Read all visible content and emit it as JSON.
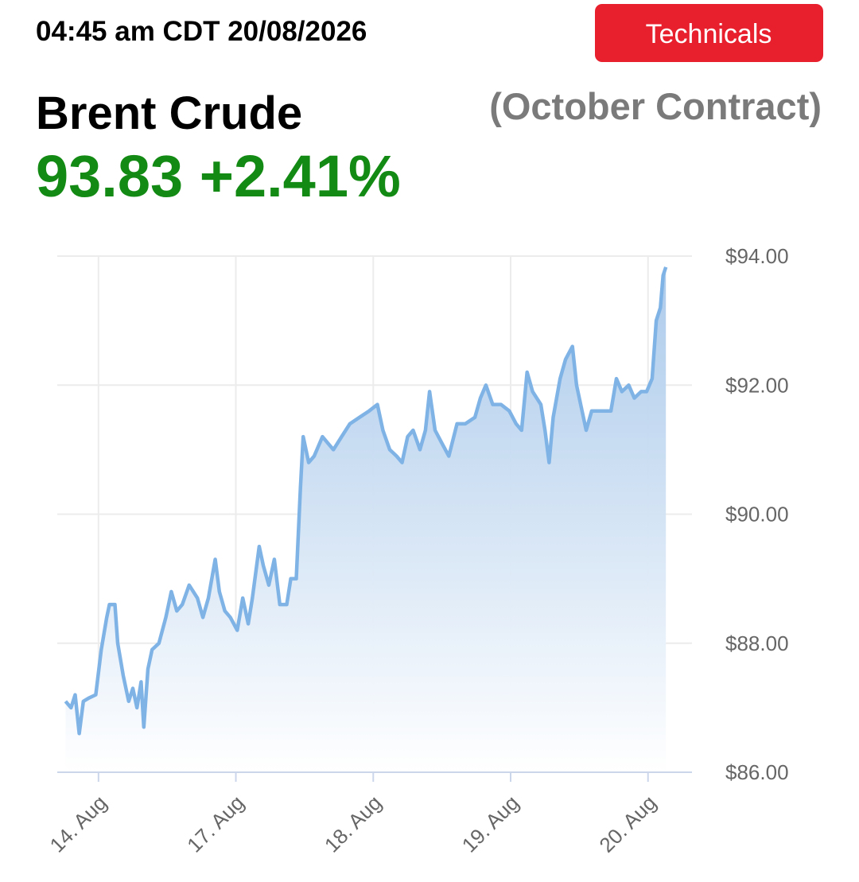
{
  "header": {
    "timestamp": "04:45 am CDT 20/08/2026",
    "button": "Technicals",
    "name": "Brent Crude",
    "contract": "(October Contract)",
    "price": "93.83",
    "change": "+2.41%"
  },
  "chart_data": {
    "type": "area",
    "x": [
      -0.24,
      -0.2,
      -0.17,
      -0.14,
      -0.11,
      -0.07,
      -0.02,
      0.02,
      0.06,
      0.08,
      0.12,
      0.14,
      0.18,
      0.22,
      0.25,
      0.28,
      0.31,
      0.33,
      0.36,
      0.39,
      0.44,
      0.49,
      0.53,
      0.57,
      0.61,
      0.66,
      0.72,
      0.76,
      0.8,
      0.85,
      0.88,
      0.92,
      0.96,
      1.01,
      1.05,
      1.09,
      1.12,
      1.17,
      1.2,
      1.24,
      1.28,
      1.32,
      1.37,
      1.4,
      1.44,
      1.47,
      1.49,
      1.53,
      1.57,
      1.63,
      1.67,
      1.71,
      1.77,
      1.83,
      1.9,
      1.97,
      2.03,
      2.07,
      2.12,
      2.17,
      2.21,
      2.25,
      2.29,
      2.34,
      2.38,
      2.41,
      2.45,
      2.5,
      2.55,
      2.61,
      2.67,
      2.74,
      2.78,
      2.82,
      2.87,
      2.93,
      2.99,
      3.04,
      3.08,
      3.12,
      3.16,
      3.22,
      3.25,
      3.28,
      3.31,
      3.36,
      3.4,
      3.45,
      3.48,
      3.52,
      3.55,
      3.59,
      3.64,
      3.73,
      3.77,
      3.81,
      3.86,
      3.9,
      3.95,
      3.99,
      4.03,
      4.06,
      4.09,
      4.11,
      4.13
    ],
    "values": [
      87.1,
      87.0,
      87.2,
      86.6,
      87.1,
      87.15,
      87.2,
      87.9,
      88.4,
      88.6,
      88.6,
      88.0,
      87.5,
      87.1,
      87.3,
      87.0,
      87.4,
      86.7,
      87.6,
      87.9,
      88.0,
      88.4,
      88.8,
      88.5,
      88.6,
      88.9,
      88.7,
      88.4,
      88.7,
      89.3,
      88.8,
      88.5,
      88.4,
      88.2,
      88.7,
      88.3,
      88.7,
      89.5,
      89.2,
      88.9,
      89.3,
      88.6,
      88.6,
      89.0,
      89.0,
      90.4,
      91.2,
      90.8,
      90.9,
      91.2,
      91.1,
      91.0,
      91.2,
      91.4,
      91.5,
      91.6,
      91.7,
      91.3,
      91.0,
      90.9,
      90.8,
      91.2,
      91.3,
      91.0,
      91.3,
      91.9,
      91.3,
      91.1,
      90.9,
      91.4,
      91.4,
      91.5,
      91.8,
      92.0,
      91.7,
      91.7,
      91.6,
      91.4,
      91.3,
      92.2,
      91.9,
      91.7,
      91.3,
      90.8,
      91.5,
      92.1,
      92.4,
      92.6,
      92.0,
      91.6,
      91.3,
      91.6,
      91.6,
      91.6,
      92.1,
      91.9,
      92.0,
      91.8,
      91.9,
      91.9,
      92.1,
      93.0,
      93.2,
      93.7,
      93.83
    ],
    "color": "#7fb3e6",
    "xlim": [
      -0.3,
      4.32
    ],
    "ylim": [
      86,
      94
    ],
    "xticks": [
      {
        "value": 0,
        "label": "14. Aug"
      },
      {
        "value": 1,
        "label": "17. Aug"
      },
      {
        "value": 2,
        "label": "18. Aug"
      },
      {
        "value": 3,
        "label": "19. Aug"
      },
      {
        "value": 4,
        "label": "20. Aug"
      }
    ],
    "yticks": [
      {
        "value": 86,
        "label": "$86.00"
      },
      {
        "value": 88,
        "label": "$88.00"
      },
      {
        "value": 90,
        "label": "$90.00"
      },
      {
        "value": 92,
        "label": "$92.00"
      },
      {
        "value": 94,
        "label": "$94.00"
      }
    ],
    "grid": true
  }
}
